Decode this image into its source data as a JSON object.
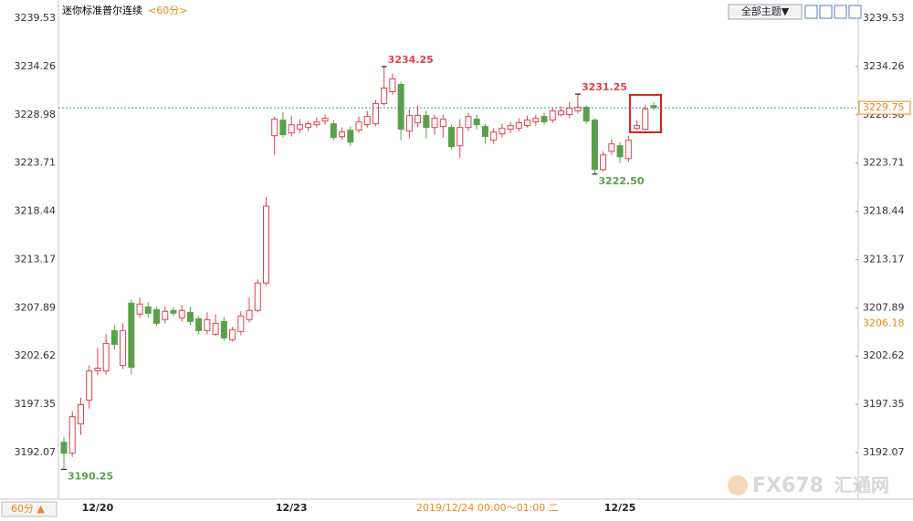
{
  "chart_data": {
    "type": "candlestick",
    "title": "迷你标准普尔连续",
    "period": "<60分>",
    "theme_button": "全部主题▼",
    "period_button": "60分 ▲",
    "crosshair_label": "2019/12/24 00:00～01:00 二",
    "watermark": [
      "FX678",
      "汇通网"
    ],
    "categories": [
      null,
      null,
      null,
      null,
      "12/20",
      null,
      null,
      null,
      null,
      null,
      null,
      null,
      null,
      null,
      null,
      null,
      null,
      null,
      null,
      null,
      null,
      null,
      null,
      null,
      null,
      null,
      null,
      "12/23",
      null,
      null,
      null,
      null,
      null,
      null,
      null,
      null,
      null,
      null,
      null,
      null,
      null,
      null,
      null,
      null,
      null,
      null,
      null,
      null,
      null,
      null,
      null,
      null,
      null,
      null,
      null,
      null,
      null,
      null,
      null,
      null,
      null,
      null,
      null,
      null,
      null,
      null,
      "12/25",
      null,
      null,
      null,
      null
    ],
    "open": [
      3193.2,
      3192.0,
      3195.2,
      3197.8,
      3201.0,
      3201.0,
      3205.4,
      3201.6,
      3208.4,
      3207.2,
      3208.0,
      3207.7,
      3206.6,
      3207.6,
      3206.8,
      3207.4,
      3206.7,
      3205.4,
      3205.0,
      3206.4,
      3204.4,
      3205.3,
      3206.6,
      3207.6,
      3210.6,
      3226.7,
      3228.4,
      3227.0,
      3227.4,
      3227.6,
      3227.9,
      3228.3,
      3228.0,
      3226.6,
      3227.3,
      3227.3,
      3227.9,
      3228.0,
      3230.2,
      3231.5,
      3232.3,
      3227.2,
      3228.1,
      3228.9,
      3227.6,
      3227.7,
      3227.6,
      3225.6,
      3227.6,
      3228.5,
      3227.7,
      3226.2,
      3226.9,
      3227.4,
      3227.5,
      3227.8,
      3228.2,
      3228.8,
      3228.4,
      3229.0,
      3229.0,
      3229.4,
      3229.8,
      3228.4,
      3223.0,
      3225.0,
      3225.6,
      3224.2,
      3227.5,
      3227.4,
      3230.0
    ],
    "high": [
      3193.8,
      3196.6,
      3198.1,
      3201.6,
      3203.5,
      3205.0,
      3206.0,
      3206.2,
      3208.8,
      3209.0,
      3208.5,
      3208.0,
      3208.0,
      3208.0,
      3208.2,
      3208.0,
      3207.0,
      3207.4,
      3207.2,
      3206.9,
      3205.8,
      3207.5,
      3209.0,
      3211.0,
      3220.0,
      3228.8,
      3229.3,
      3228.9,
      3228.5,
      3228.3,
      3228.7,
      3229.0,
      3228.4,
      3227.6,
      3227.7,
      3228.8,
      3229.4,
      3230.6,
      3234.25,
      3233.5,
      3232.6,
      3229.6,
      3230.0,
      3229.4,
      3229.0,
      3229.0,
      3227.9,
      3228.5,
      3229.2,
      3229.0,
      3228.0,
      3227.5,
      3228.0,
      3228.2,
      3228.6,
      3228.9,
      3229.0,
      3229.2,
      3229.8,
      3229.9,
      3230.4,
      3231.25,
      3230.0,
      3228.6,
      3225.0,
      3226.3,
      3226.0,
      3226.7,
      3228.4,
      3230.1,
      3230.4
    ],
    "low": [
      3190.25,
      3191.6,
      3194.0,
      3196.9,
      3200.5,
      3200.6,
      3203.3,
      3201.2,
      3200.6,
      3206.8,
      3206.8,
      3205.9,
      3206.2,
      3207.0,
      3206.4,
      3206.0,
      3205.0,
      3205.0,
      3204.8,
      3204.3,
      3204.2,
      3204.9,
      3206.3,
      3207.4,
      3210.3,
      3224.6,
      3226.5,
      3226.6,
      3227.0,
      3227.2,
      3227.6,
      3227.9,
      3226.2,
      3226.3,
      3225.6,
      3227.0,
      3227.6,
      3227.7,
      3230.0,
      3231.2,
      3226.2,
      3226.4,
      3227.6,
      3226.4,
      3226.8,
      3226.5,
      3225.2,
      3224.3,
      3227.2,
      3227.4,
      3225.8,
      3225.8,
      3226.5,
      3227.0,
      3227.2,
      3227.6,
      3227.8,
      3227.9,
      3228.1,
      3228.8,
      3228.6,
      3229.1,
      3228.0,
      3222.5,
      3222.8,
      3224.6,
      3223.7,
      3223.8,
      3227.3,
      3227.3,
      3229.5
    ],
    "close": [
      3192.0,
      3196.0,
      3197.3,
      3201.0,
      3201.3,
      3204.0,
      3203.9,
      3205.4,
      3201.4,
      3208.3,
      3207.3,
      3206.2,
      3207.5,
      3207.3,
      3207.6,
      3206.4,
      3205.4,
      3206.6,
      3206.2,
      3204.6,
      3205.5,
      3207.0,
      3207.6,
      3210.6,
      3219.0,
      3228.5,
      3226.8,
      3227.9,
      3227.9,
      3228.0,
      3228.2,
      3228.6,
      3226.5,
      3227.1,
      3226.0,
      3228.2,
      3228.8,
      3230.2,
      3231.9,
      3232.9,
      3227.4,
      3228.9,
      3228.9,
      3227.6,
      3228.6,
      3228.5,
      3225.5,
      3227.6,
      3228.8,
      3227.9,
      3226.6,
      3227.1,
      3227.5,
      3227.8,
      3228.1,
      3228.4,
      3228.6,
      3228.2,
      3229.4,
      3229.4,
      3229.7,
      3229.8,
      3228.3,
      3223.0,
      3224.6,
      3225.8,
      3224.4,
      3226.2,
      3227.8,
      3229.6,
      3229.75
    ],
    "up_color": "#e0404a",
    "down_color": "#5aa04c",
    "annotations": [
      {
        "value": 3234.25,
        "label": "3234.25"
      },
      {
        "value": 3231.25,
        "label": "3231.25"
      },
      {
        "value": 3222.5,
        "label": "3222.50"
      },
      {
        "value": 3190.25,
        "label": "3190.25"
      }
    ],
    "last_price": 3229.75,
    "marker_price": 3206.18,
    "ylim": [
      3187.19,
      3239.53
    ],
    "yticks": [
      3192.07,
      3197.35,
      3202.62,
      3207.89,
      3213.17,
      3218.44,
      3223.71,
      3228.98,
      3234.26,
      3239.53
    ],
    "grid": false
  }
}
